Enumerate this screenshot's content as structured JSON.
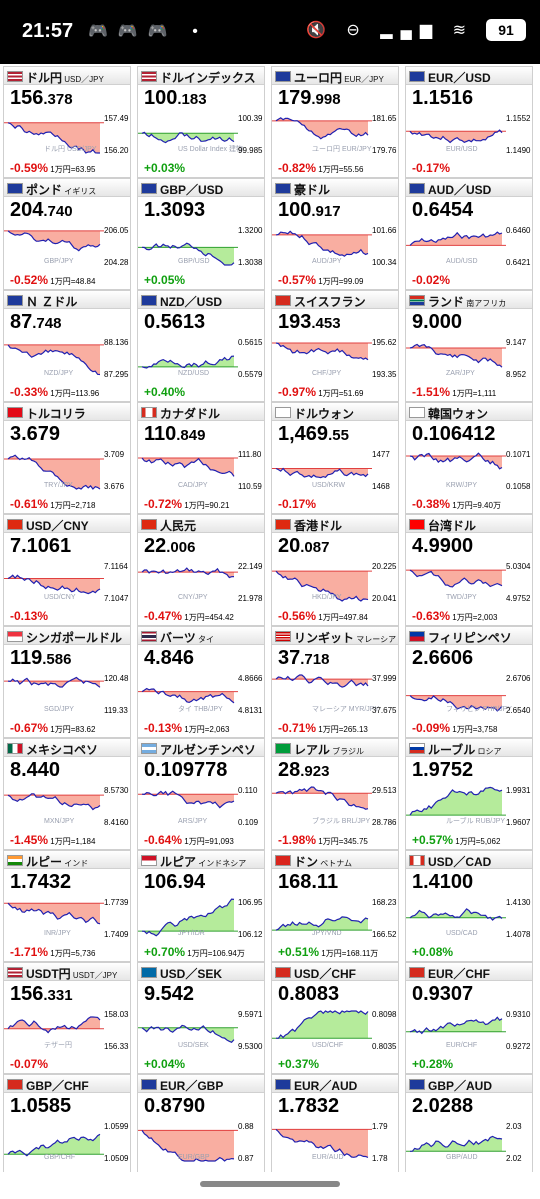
{
  "status_bar": {
    "time": "21:57",
    "battery": "91",
    "left_icons": "🎮🎮🎮 •",
    "right_icons": "🔇 ⊖ ▂▄▆ ≋"
  },
  "colors": {
    "neg": "#e01010",
    "pos": "#10a010",
    "neg_fill": "#f8a090",
    "pos_fill": "#a8e88a",
    "line": "#2020b0"
  },
  "cards": [
    {
      "name": "ドル円",
      "sub": "USD／JPY",
      "price_big": "156",
      "price_small": ".378",
      "change": "-0.59%",
      "sign": "neg",
      "note": "1万円=63.95",
      "axis": [
        "157.49",
        "156.20"
      ],
      "wm": "ドル円 USD/JPY",
      "flag": "us",
      "trend": "down"
    },
    {
      "name": "ドルインデックス",
      "sub": "",
      "price_big": "100",
      "price_small": ".183",
      "change": "+0.03%",
      "sign": "pos",
      "note": "",
      "axis": [
        "100.39",
        "99.985"
      ],
      "wm": "US Dollar Index 建物",
      "flag": "us",
      "trend": "flat"
    },
    {
      "name": "ユーロ円",
      "sub": "EUR／JPY",
      "price_big": "179",
      "price_small": ".998",
      "change": "-0.82%",
      "sign": "neg",
      "note": "1万円=55.56",
      "axis": [
        "181.65",
        "179.76"
      ],
      "wm": "ユーロ円 EUR/JPY",
      "flag": "eu",
      "trend": "down"
    },
    {
      "name": "EUR／USD",
      "sub": "",
      "price_big": "1.1516",
      "price_small": "",
      "change": "-0.17%",
      "sign": "neg",
      "note": "",
      "axis": [
        "1.1552",
        "1.1490"
      ],
      "wm": "EUR/USD",
      "flag": "eu",
      "trend": "flat"
    },
    {
      "name": "ポンド",
      "sub": "イギリス",
      "price_big": "204",
      "price_small": ".740",
      "change": "-0.52%",
      "sign": "neg",
      "note": "1万円=48.84",
      "axis": [
        "206.05",
        "204.28"
      ],
      "wm": "GBP/JPY",
      "flag": "gb",
      "trend": "down"
    },
    {
      "name": "GBP／USD",
      "sub": "",
      "price_big": "1.3093",
      "price_small": "",
      "change": "+0.05%",
      "sign": "pos",
      "note": "",
      "axis": [
        "1.3200",
        "1.3038"
      ],
      "wm": "GBP/USD",
      "flag": "gb",
      "trend": "flat"
    },
    {
      "name": "豪ドル",
      "sub": "",
      "price_big": "100",
      "price_small": ".917",
      "change": "-0.57%",
      "sign": "neg",
      "note": "1万円=99.09",
      "axis": [
        "101.66",
        "100.34"
      ],
      "wm": "AUD/JPY",
      "flag": "au",
      "trend": "down"
    },
    {
      "name": "AUD／USD",
      "sub": "",
      "price_big": "0.6454",
      "price_small": "",
      "change": "-0.02%",
      "sign": "neg",
      "note": "",
      "axis": [
        "0.6460",
        "0.6421"
      ],
      "wm": "AUD/USD",
      "flag": "au",
      "trend": "flat"
    },
    {
      "name": "Ｎ Ｚドル",
      "sub": "",
      "price_big": "87",
      "price_small": ".748",
      "change": "-0.33%",
      "sign": "neg",
      "note": "1万円=113.96",
      "axis": [
        "88.136",
        "87.295"
      ],
      "wm": "NZD/JPY",
      "flag": "nz",
      "trend": "down"
    },
    {
      "name": "NZD／USD",
      "sub": "",
      "price_big": "0.5613",
      "price_small": "",
      "change": "+0.40%",
      "sign": "pos",
      "note": "",
      "axis": [
        "0.5615",
        "0.5579"
      ],
      "wm": "NZD/USD",
      "flag": "nz",
      "trend": "up"
    },
    {
      "name": "スイスフラン",
      "sub": "",
      "price_big": "193",
      "price_small": ".453",
      "change": "-0.97%",
      "sign": "neg",
      "note": "1万円=51.69",
      "axis": [
        "195.62",
        "193.35"
      ],
      "wm": "CHF/JPY",
      "flag": "ch",
      "trend": "down"
    },
    {
      "name": "ランド",
      "sub": "南アフリカ",
      "price_big": "9.000",
      "price_small": "",
      "change": "-1.51%",
      "sign": "neg",
      "note": "1万円=1,111",
      "axis": [
        "9.147",
        "8.952"
      ],
      "wm": "ZAR/JPY",
      "flag": "za",
      "trend": "down"
    },
    {
      "name": "トルコリラ",
      "sub": "",
      "price_big": "3.679",
      "price_small": "",
      "change": "-0.61%",
      "sign": "neg",
      "note": "1万円=2,718",
      "axis": [
        "3.709",
        "3.676"
      ],
      "wm": "TRY/JPY",
      "flag": "tr",
      "trend": "down"
    },
    {
      "name": "カナダドル",
      "sub": "",
      "price_big": "110",
      "price_small": ".849",
      "change": "-0.72%",
      "sign": "neg",
      "note": "1万円=90.21",
      "axis": [
        "111.80",
        "110.59"
      ],
      "wm": "CAD/JPY",
      "flag": "ca",
      "trend": "down"
    },
    {
      "name": "ドルウォン",
      "sub": "",
      "price_big": "1,469",
      "price_small": ".55",
      "change": "-0.17%",
      "sign": "neg",
      "note": "",
      "axis": [
        "1477",
        "1468"
      ],
      "wm": "USD/KRW",
      "flag": "kr",
      "trend": "flat"
    },
    {
      "name": "韓国ウォン",
      "sub": "",
      "price_big": "0.106412",
      "price_small": "",
      "change": "-0.38%",
      "sign": "neg",
      "note": "1万円=9.40万",
      "axis": [
        "0.1071",
        "0.1058"
      ],
      "wm": "KRW/JPY",
      "flag": "kr",
      "trend": "down"
    },
    {
      "name": "USD／CNY",
      "sub": "",
      "price_big": "7.1061",
      "price_small": "",
      "change": "-0.13%",
      "sign": "neg",
      "note": "",
      "axis": [
        "7.1164",
        "7.1047"
      ],
      "wm": "USD/CNY",
      "flag": "cn",
      "trend": "flat"
    },
    {
      "name": "人民元",
      "sub": "",
      "price_big": "22",
      "price_small": ".006",
      "change": "-0.47%",
      "sign": "neg",
      "note": "1万円=454.42",
      "axis": [
        "22.149",
        "21.978"
      ],
      "wm": "CNY/JPY",
      "flag": "cn",
      "trend": "down"
    },
    {
      "name": "香港ドル",
      "sub": "",
      "price_big": "20",
      "price_small": ".087",
      "change": "-0.56%",
      "sign": "neg",
      "note": "1万円=497.84",
      "axis": [
        "20.225",
        "20.041"
      ],
      "wm": "HKD/JPY",
      "flag": "hk",
      "trend": "down"
    },
    {
      "name": "台湾ドル",
      "sub": "",
      "price_big": "4.9900",
      "price_small": "",
      "change": "-0.63%",
      "sign": "neg",
      "note": "1万円=2,003",
      "axis": [
        "5.0304",
        "4.9752"
      ],
      "wm": "TWD/JPY",
      "flag": "tw",
      "trend": "down"
    },
    {
      "name": "シンガポールドル",
      "sub": "",
      "price_big": "119",
      "price_small": ".586",
      "change": "-0.67%",
      "sign": "neg",
      "note": "1万円=83.62",
      "axis": [
        "120.48",
        "119.33"
      ],
      "wm": "SGD/JPY",
      "flag": "sg",
      "trend": "down"
    },
    {
      "name": "バーツ",
      "sub": "タイ",
      "price_big": "4.846",
      "price_small": "",
      "change": "-0.13%",
      "sign": "neg",
      "note": "1万円=2,063",
      "axis": [
        "4.8666",
        "4.8131"
      ],
      "wm": "タイ THB/JPY",
      "flag": "th",
      "trend": "flat"
    },
    {
      "name": "リンギット",
      "sub": "マレーシア",
      "price_big": "37",
      "price_small": ".718",
      "change": "-0.71%",
      "sign": "neg",
      "note": "1万円=265.13",
      "axis": [
        "37.999",
        "37.675"
      ],
      "wm": "マレーシア MYR/JPY",
      "flag": "my",
      "trend": "down"
    },
    {
      "name": "フィリピンペソ",
      "sub": "",
      "price_big": "2.6606",
      "price_small": "",
      "change": "-0.09%",
      "sign": "neg",
      "note": "1万円=3,758",
      "axis": [
        "2.6706",
        "2.6540"
      ],
      "wm": "フィリピン PHP/JPY",
      "flag": "ph",
      "trend": "flat"
    },
    {
      "name": "メキシコペソ",
      "sub": "",
      "price_big": "8.440",
      "price_small": "",
      "change": "-1.45%",
      "sign": "neg",
      "note": "1万円=1,184",
      "axis": [
        "8.5730",
        "8.4160"
      ],
      "wm": "MXN/JPY",
      "flag": "mx",
      "trend": "down"
    },
    {
      "name": "アルゼンチンペソ",
      "sub": "",
      "price_big": "0.109778",
      "price_small": "",
      "change": "-0.64%",
      "sign": "neg",
      "note": "1万円=91,093",
      "axis": [
        "0.110",
        "0.109"
      ],
      "wm": "ARS/JPY",
      "flag": "ar",
      "trend": "down"
    },
    {
      "name": "レアル",
      "sub": "ブラジル",
      "price_big": "28",
      "price_small": ".923",
      "change": "-1.98%",
      "sign": "neg",
      "note": "1万円=345.75",
      "axis": [
        "29.513",
        "28.786"
      ],
      "wm": "ブラジル BRL/JPY",
      "flag": "br",
      "trend": "down"
    },
    {
      "name": "ルーブル",
      "sub": "ロシア",
      "price_big": "1.9752",
      "price_small": "",
      "change": "+0.57%",
      "sign": "pos",
      "note": "1万円=5,062",
      "axis": [
        "1.9931",
        "1.9607"
      ],
      "wm": "ルーブル RUB/JPY",
      "flag": "ru",
      "trend": "up"
    },
    {
      "name": "ルピー",
      "sub": "インド",
      "price_big": "1.7432",
      "price_small": "",
      "change": "-1.71%",
      "sign": "neg",
      "note": "1万円=5,736",
      "axis": [
        "1.7739",
        "1.7409"
      ],
      "wm": "INR/JPY",
      "flag": "in",
      "trend": "down"
    },
    {
      "name": "ルピア",
      "sub": "インドネシア",
      "price_big": "106.94",
      "price_small": "",
      "change": "+0.70%",
      "sign": "pos",
      "note": "1万円=106.94万",
      "axis": [
        "106.95",
        "106.12"
      ],
      "wm": "JPY/IDR",
      "flag": "id",
      "trend": "up"
    },
    {
      "name": "ドン",
      "sub": "ベトナム",
      "price_big": "168.11",
      "price_small": "",
      "change": "+0.51%",
      "sign": "pos",
      "note": "1万円=168.11万",
      "axis": [
        "168.23",
        "166.52"
      ],
      "wm": "JPY/VND",
      "flag": "vn",
      "trend": "up"
    },
    {
      "name": "USD／CAD",
      "sub": "",
      "price_big": "1.4100",
      "price_small": "",
      "change": "+0.08%",
      "sign": "pos",
      "note": "",
      "axis": [
        "1.4130",
        "1.4078"
      ],
      "wm": "USD/CAD",
      "flag": "ca",
      "trend": "flat"
    },
    {
      "name": "USDT円",
      "sub": "USDT／JPY",
      "price_big": "156",
      "price_small": ".331",
      "change": "-0.07%",
      "sign": "neg",
      "note": "",
      "axis": [
        "158.03",
        "156.33"
      ],
      "wm": "テザー円",
      "flag": "us",
      "trend": "flat"
    },
    {
      "name": "USD／SEK",
      "sub": "",
      "price_big": "9.542",
      "price_small": "",
      "change": "+0.04%",
      "sign": "pos",
      "note": "",
      "axis": [
        "9.5971",
        "9.5300"
      ],
      "wm": "USD/SEK",
      "flag": "se",
      "trend": "flat"
    },
    {
      "name": "USD／CHF",
      "sub": "",
      "price_big": "0.8083",
      "price_small": "",
      "change": "+0.37%",
      "sign": "pos",
      "note": "",
      "axis": [
        "0.8098",
        "0.8035"
      ],
      "wm": "USD/CHF",
      "flag": "ch",
      "trend": "up"
    },
    {
      "name": "EUR／CHF",
      "sub": "",
      "price_big": "0.9307",
      "price_small": "",
      "change": "+0.28%",
      "sign": "pos",
      "note": "",
      "axis": [
        "0.9310",
        "0.9272"
      ],
      "wm": "EUR/CHF",
      "flag": "ch",
      "trend": "flat"
    },
    {
      "name": "GBP／CHF",
      "sub": "",
      "price_big": "1.0585",
      "price_small": "",
      "change": "",
      "sign": "pos",
      "note": "",
      "axis": [
        "1.0599",
        "1.0509"
      ],
      "wm": "GBP/CHF",
      "flag": "ch",
      "trend": "up"
    },
    {
      "name": "EUR／GBP",
      "sub": "",
      "price_big": "0.8790",
      "price_small": "",
      "change": "",
      "sign": "neg",
      "note": "",
      "axis": [
        "0.88",
        "0.87"
      ],
      "wm": "EUR/GBP",
      "flag": "gb",
      "trend": "down"
    },
    {
      "name": "EUR／AUD",
      "sub": "",
      "price_big": "1.7832",
      "price_small": "",
      "change": "",
      "sign": "neg",
      "note": "",
      "axis": [
        "1.79",
        "1.78"
      ],
      "wm": "EUR/AUD",
      "flag": "au",
      "trend": "down"
    },
    {
      "name": "GBP／AUD",
      "sub": "",
      "price_big": "2.0288",
      "price_small": "",
      "change": "",
      "sign": "pos",
      "note": "",
      "axis": [
        "2.03",
        "2.02"
      ],
      "wm": "GBP/AUD",
      "flag": "au",
      "trend": "up"
    }
  ]
}
